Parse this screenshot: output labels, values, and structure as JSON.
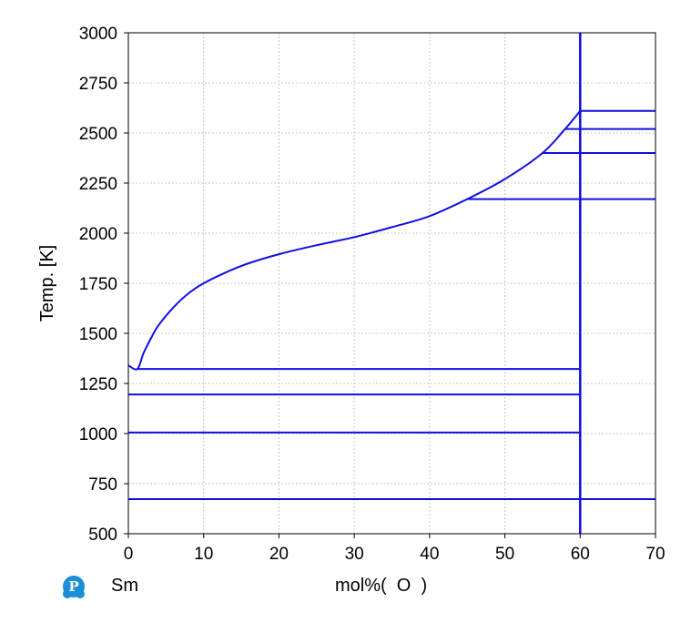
{
  "chart_data": {
    "type": "line",
    "xlabel": "mol%(  O  )",
    "ylabel": "Temp.  [K]",
    "xlim": [
      0,
      70
    ],
    "ylim": [
      500,
      3000
    ],
    "x_ticks": [
      "0",
      "10",
      "20",
      "30",
      "40",
      "50",
      "60",
      "70"
    ],
    "y_ticks": [
      "500",
      "750",
      "1000",
      "1250",
      "1500",
      "1750",
      "2000",
      "2250",
      "2500",
      "2750",
      "3000"
    ],
    "grid": true,
    "line_color": "#1010e0",
    "series": [
      {
        "type": "curve",
        "points": [
          [
            0,
            1340
          ],
          [
            1.2,
            1322
          ],
          [
            2,
            1400
          ],
          [
            3,
            1475
          ],
          [
            4,
            1540
          ],
          [
            6,
            1630
          ],
          [
            8,
            1700
          ],
          [
            10,
            1750
          ],
          [
            13,
            1805
          ],
          [
            16,
            1850
          ],
          [
            20,
            1895
          ],
          [
            25,
            1940
          ],
          [
            30,
            1980
          ],
          [
            35,
            2030
          ],
          [
            40,
            2085
          ],
          [
            45,
            2170
          ],
          [
            50,
            2270
          ],
          [
            55,
            2400
          ],
          [
            58,
            2520
          ],
          [
            60,
            2610
          ]
        ]
      },
      {
        "type": "hline",
        "y": 1322,
        "x": [
          1.2,
          60
        ]
      },
      {
        "type": "hline",
        "y": 1195,
        "x": [
          0,
          60
        ]
      },
      {
        "type": "hline",
        "y": 1005,
        "x": [
          0,
          60
        ]
      },
      {
        "type": "hline",
        "y": 673,
        "x": [
          0,
          70
        ]
      },
      {
        "type": "hline",
        "y": 2170,
        "x": [
          45,
          70
        ]
      },
      {
        "type": "hline",
        "y": 2400,
        "x": [
          55,
          70
        ]
      },
      {
        "type": "hline",
        "y": 2520,
        "x": [
          58,
          70
        ]
      },
      {
        "type": "hline",
        "y": 2610,
        "x": [
          60,
          70
        ]
      },
      {
        "type": "vline",
        "x": 60,
        "y": [
          500,
          3000
        ]
      }
    ]
  },
  "footer": {
    "element": "Sm",
    "logo_icon": "pandat-logo-icon"
  }
}
